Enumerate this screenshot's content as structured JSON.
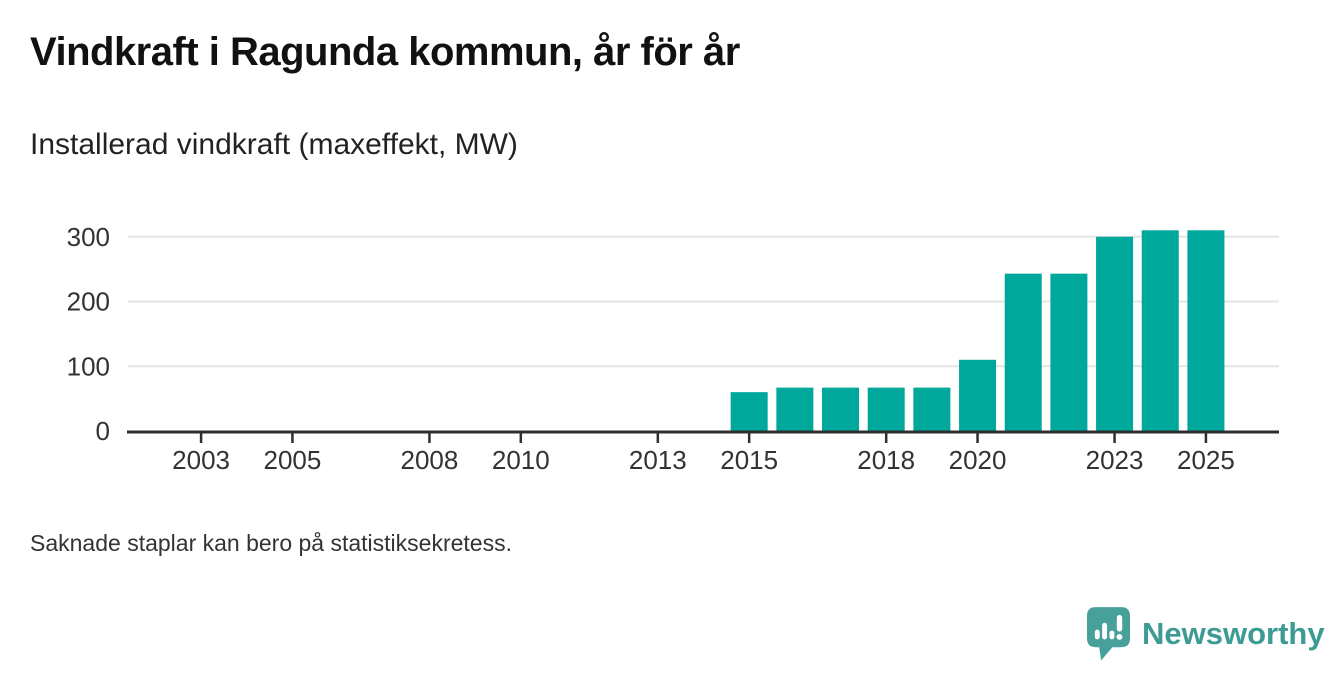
{
  "title": "Vindkraft i Ragunda kommun, år för år",
  "subtitle": "Installerad vindkraft (maxeffekt, MW)",
  "footnote": "Saknade staplar kan bero på statistiksekretess.",
  "logo": {
    "text": "Newsworthy",
    "icon": "speech-bubble-bar-chart-exclamation"
  },
  "colors": {
    "bar": "#00a79b",
    "axis": "#2e2e2e",
    "grid": "#e4e4e4",
    "tick_text": "#333333",
    "logo_bubble": "#47a099",
    "logo_text": "#3d9b94"
  },
  "chart_data": {
    "type": "bar",
    "title": "Vindkraft i Ragunda kommun, år för år",
    "subtitle": "Installerad vindkraft (maxeffekt, MW)",
    "x": [
      2015,
      2016,
      2017,
      2018,
      2019,
      2020,
      2021,
      2022,
      2023,
      2024,
      2025
    ],
    "values": [
      60,
      67,
      67,
      67,
      67,
      110,
      243,
      243,
      300,
      310,
      310
    ],
    "series_name": "Installerad vindkraft (maxeffekt, MW)",
    "xticks": [
      2003,
      2005,
      2008,
      2010,
      2013,
      2015,
      2018,
      2020,
      2023,
      2025
    ],
    "yticks": [
      0,
      100,
      200,
      300
    ],
    "xlim": [
      2001.4,
      2026.6
    ],
    "ylim": [
      0,
      310
    ],
    "grid": "horizontal",
    "legend": "none",
    "note": "Saknade staplar kan bero på statistiksekretess."
  }
}
